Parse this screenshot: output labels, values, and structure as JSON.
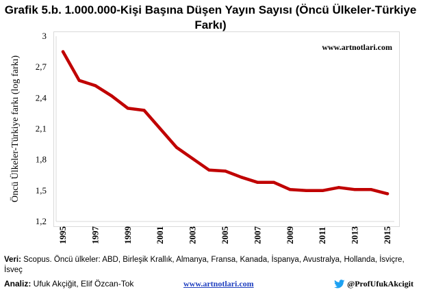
{
  "title": "Grafik 5.b. 1.000.000-Kişi Başına Düşen Yayın Sayısı (Öncü Ülkeler-Türkiye Farkı)",
  "watermark": "www.artnotlari.com",
  "footer": {
    "source_label": "Veri:",
    "source_text": " Scopus. Öncü ülkeler: ABD, Birleşik Krallık, Almanya, Fransa, Kanada, İspanya, Avustralya, Hollanda, İsviçre, İsveç",
    "analysis_label": "Analiz:",
    "analysis_text": " Ufuk Akçiğit, Elif Özcan-Tok",
    "site": "www.artnotlari.com",
    "twitter": "@ProfUfukAkcigit"
  },
  "colors": {
    "line": "#c00000",
    "grid": "#d9d9d9",
    "link": "#1f3fbf",
    "twitter": "#1da1f2"
  },
  "chart_data": {
    "type": "line",
    "ylabel": "Öncü Ülkeler-Türkiye farkı (log farkı)",
    "xlabel": "",
    "ylim": [
      1.2,
      3
    ],
    "yticks": [
      "1,2",
      "1,5",
      "1,8",
      "2,1",
      "2,4",
      "2,7",
      "3"
    ],
    "xticks": [
      "1995",
      "1997",
      "1999",
      "2001",
      "2003",
      "2005",
      "2007",
      "2009",
      "2011",
      "2013",
      "2015"
    ],
    "grid": false,
    "series": [
      {
        "x": [
          1995,
          1996,
          1997,
          1998,
          1999,
          2000,
          2001,
          2002,
          2003,
          2004,
          2005,
          2006,
          2007,
          2008,
          2009,
          2010,
          2011,
          2012,
          2013,
          2014,
          2015
        ],
        "values": [
          2.85,
          2.57,
          2.52,
          2.42,
          2.3,
          2.28,
          2.1,
          1.92,
          1.81,
          1.7,
          1.69,
          1.63,
          1.58,
          1.58,
          1.51,
          1.5,
          1.5,
          1.53,
          1.51,
          1.51,
          1.47
        ]
      }
    ]
  }
}
